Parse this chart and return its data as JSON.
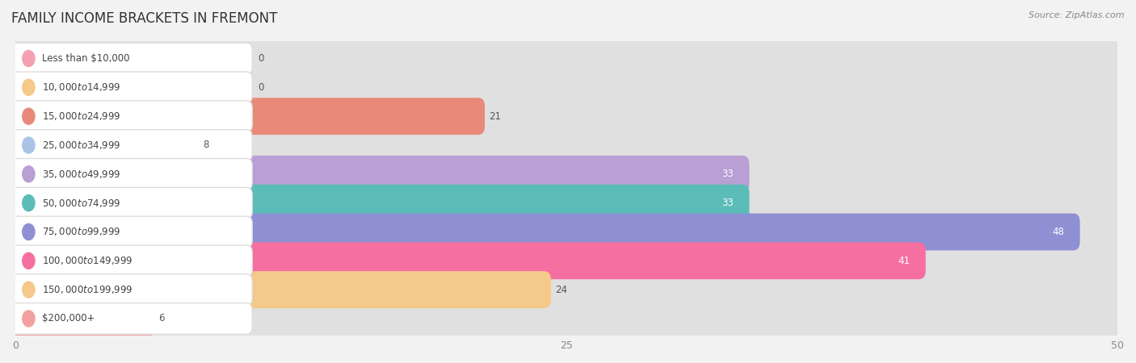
{
  "title": "FAMILY INCOME BRACKETS IN FREMONT",
  "source": "Source: ZipAtlas.com",
  "categories": [
    "Less than $10,000",
    "$10,000 to $14,999",
    "$15,000 to $24,999",
    "$25,000 to $34,999",
    "$35,000 to $49,999",
    "$50,000 to $74,999",
    "$75,000 to $99,999",
    "$100,000 to $149,999",
    "$150,000 to $199,999",
    "$200,000+"
  ],
  "values": [
    0,
    0,
    21,
    8,
    33,
    33,
    48,
    41,
    24,
    6
  ],
  "bar_colors": [
    "#f4a0b0",
    "#f5c98a",
    "#e8897a",
    "#aac4e8",
    "#b89fd4",
    "#5bbcb8",
    "#8f8fd4",
    "#f570a0",
    "#f5c98a",
    "#f4a0a0"
  ],
  "xlim": [
    0,
    50
  ],
  "xticks": [
    0,
    25,
    50
  ],
  "background_color": "#f2f2f2",
  "row_bg_color": "#ffffff",
  "bar_bg_color": "#e0e0e0",
  "pill_bg_color": "#ffffff",
  "title_fontsize": 12,
  "label_fontsize": 8.5,
  "value_fontsize": 8.5,
  "value_inside_color": "#ffffff",
  "value_outside_color": "#555555",
  "label_color": "#444444",
  "inside_threshold": 30
}
